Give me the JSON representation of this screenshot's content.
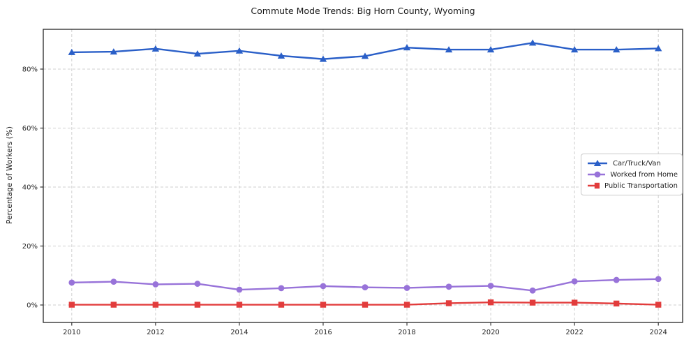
{
  "chart_data": {
    "type": "line",
    "title": "Commute Mode Trends: Big Horn County, Wyoming",
    "xlabel": "",
    "ylabel": "Percentage of Workers (%)",
    "x": [
      2010,
      2011,
      2012,
      2013,
      2014,
      2015,
      2016,
      2017,
      2018,
      2019,
      2020,
      2021,
      2022,
      2023,
      2024
    ],
    "series": [
      {
        "name": "Car/Truck/Van",
        "color": "#2a5fc8",
        "marker": "triangle",
        "values": [
          85.7,
          85.9,
          86.9,
          85.2,
          86.2,
          84.5,
          83.4,
          84.4,
          87.3,
          86.6,
          86.6,
          88.9,
          86.6,
          86.6,
          87.0
        ]
      },
      {
        "name": "Worked from Home",
        "color": "#9873d9",
        "marker": "circle",
        "values": [
          7.6,
          7.9,
          7.0,
          7.2,
          5.2,
          5.7,
          6.4,
          6.0,
          5.8,
          6.2,
          6.5,
          4.9,
          8.0,
          8.5,
          8.8
        ]
      },
      {
        "name": "Public Transportation",
        "color": "#e23c3c",
        "marker": "square",
        "values": [
          0.1,
          0.1,
          0.1,
          0.1,
          0.1,
          0.1,
          0.1,
          0.1,
          0.1,
          0.6,
          0.9,
          0.8,
          0.8,
          0.5,
          0.1
        ]
      }
    ],
    "xticks": [
      2010,
      2012,
      2014,
      2016,
      2018,
      2020,
      2022,
      2024
    ],
    "yticks": [
      0,
      20,
      40,
      60,
      80
    ],
    "ytick_suffix": "%",
    "xlim": [
      2009.32,
      2024.58
    ],
    "ylim": [
      -5.92,
      93.49
    ],
    "grid": true,
    "legend_position": "center right"
  }
}
